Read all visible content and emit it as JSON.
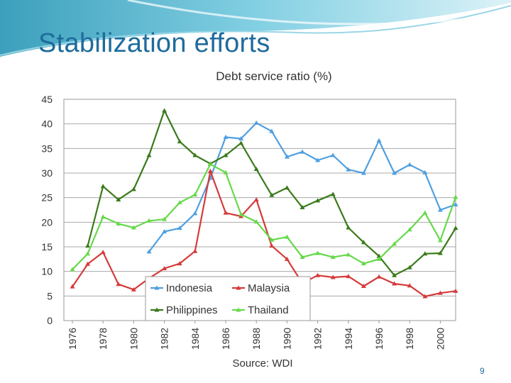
{
  "slide": {
    "title": "Stabilization efforts",
    "page_number": "9"
  },
  "chart_data": {
    "type": "line",
    "title": "Debt service ratio (%)",
    "source": "Source: WDI",
    "xlabel": "",
    "ylabel": "",
    "ylim": [
      0,
      45
    ],
    "yticks": [
      0,
      5,
      10,
      15,
      20,
      25,
      30,
      35,
      40,
      45
    ],
    "xlim": [
      1976,
      2001
    ],
    "xticks": [
      "1976",
      "1978",
      "1980",
      "1982",
      "1984",
      "1986",
      "1988",
      "1990",
      "1992",
      "1994",
      "1996",
      "1998",
      "2000"
    ],
    "grid": true,
    "legend": "bottom-left",
    "series": [
      {
        "name": "Indonesia",
        "color": "#4f9fe0",
        "x": [
          1981,
          1982,
          1983,
          1984,
          1985,
          1986,
          1987,
          1988,
          1989,
          1990,
          1991,
          1992,
          1993,
          1994,
          1995,
          1996,
          1997,
          1998,
          1999,
          2000,
          2001
        ],
        "values": [
          14.0,
          18.1,
          18.8,
          21.8,
          29.0,
          37.3,
          37.0,
          40.2,
          38.5,
          33.3,
          34.3,
          32.6,
          33.6,
          30.7,
          30.0,
          36.6,
          30.0,
          31.7,
          30.1,
          22.5,
          23.6
        ]
      },
      {
        "name": "Malaysia",
        "color": "#d63a3a",
        "x": [
          1976,
          1977,
          1978,
          1979,
          1980,
          1981,
          1982,
          1983,
          1984,
          1985,
          1986,
          1987,
          1988,
          1989,
          1990,
          1991,
          1992,
          1993,
          1994,
          1995,
          1996,
          1997,
          1998,
          1999,
          2000,
          2001
        ],
        "values": [
          6.9,
          11.5,
          13.9,
          7.4,
          6.3,
          8.6,
          10.6,
          11.6,
          14.1,
          30.4,
          21.9,
          21.2,
          24.6,
          15.2,
          12.5,
          7.6,
          9.2,
          8.8,
          9.0,
          7.0,
          8.9,
          7.5,
          7.1,
          4.9,
          5.6,
          6.0
        ]
      },
      {
        "name": "Philippines",
        "color": "#3a7a1a",
        "x": [
          1977,
          1978,
          1979,
          1980,
          1981,
          1982,
          1983,
          1984,
          1985,
          1986,
          1987,
          1988,
          1989,
          1990,
          1991,
          1992,
          1993,
          1994,
          1995,
          1996,
          1997,
          1998,
          1999,
          2000,
          2001
        ],
        "values": [
          15.2,
          27.3,
          24.6,
          26.7,
          33.6,
          42.7,
          36.4,
          33.6,
          31.9,
          33.6,
          36.1,
          30.8,
          25.5,
          27.0,
          23.0,
          24.4,
          25.7,
          18.9,
          15.9,
          13.1,
          9.2,
          10.8,
          13.6,
          13.7,
          18.8
        ]
      },
      {
        "name": "Thailand",
        "color": "#66d94a",
        "x": [
          1976,
          1977,
          1978,
          1979,
          1980,
          1981,
          1982,
          1983,
          1984,
          1985,
          1986,
          1987,
          1988,
          1989,
          1990,
          1991,
          1992,
          1993,
          1994,
          1995,
          1996,
          1997,
          1998,
          1999,
          2000,
          2001
        ],
        "values": [
          10.4,
          13.6,
          21.1,
          19.7,
          18.9,
          20.3,
          20.6,
          24.0,
          25.6,
          31.8,
          30.1,
          21.6,
          20.1,
          16.4,
          17.0,
          12.9,
          13.7,
          12.9,
          13.4,
          11.6,
          12.5,
          15.6,
          18.5,
          21.9,
          16.3,
          25.1
        ]
      }
    ]
  }
}
